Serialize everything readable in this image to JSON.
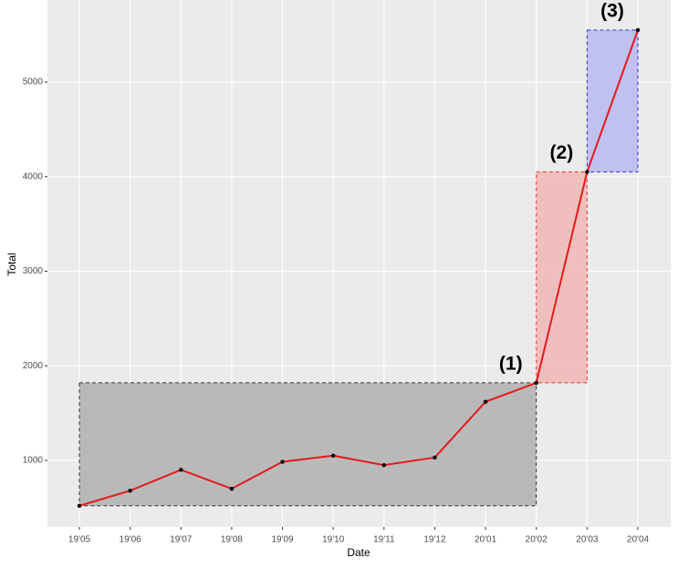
{
  "chart_data": {
    "type": "line",
    "x_label": "Date",
    "y_label": "Total",
    "categories": [
      "19'05",
      "19'06",
      "19'07",
      "19'08",
      "19'09",
      "19'10",
      "19'11",
      "19'12",
      "20'01",
      "20'02",
      "20'03",
      "20'04"
    ],
    "values": [
      520,
      680,
      900,
      700,
      985,
      1050,
      950,
      1030,
      1620,
      1820,
      4050,
      5550
    ],
    "color": "#e31a1c",
    "point_color": "#000000",
    "ylim": [
      296,
      5868
    ],
    "yticks": [
      1000,
      2000,
      3000,
      4000,
      5000
    ],
    "grid": true,
    "highlights": [
      {
        "label": "(1)",
        "from": "19'05",
        "to": "20'02",
        "fill": "#b0b0b0",
        "stroke": "#333333"
      },
      {
        "label": "(2)",
        "from": "20'02",
        "to": "20'03",
        "fill": "#f2b6b6",
        "stroke": "#f03030"
      },
      {
        "label": "(3)",
        "from": "20'03",
        "to": "20'04",
        "fill": "#b8b8f2",
        "stroke": "#3030e0"
      }
    ]
  }
}
